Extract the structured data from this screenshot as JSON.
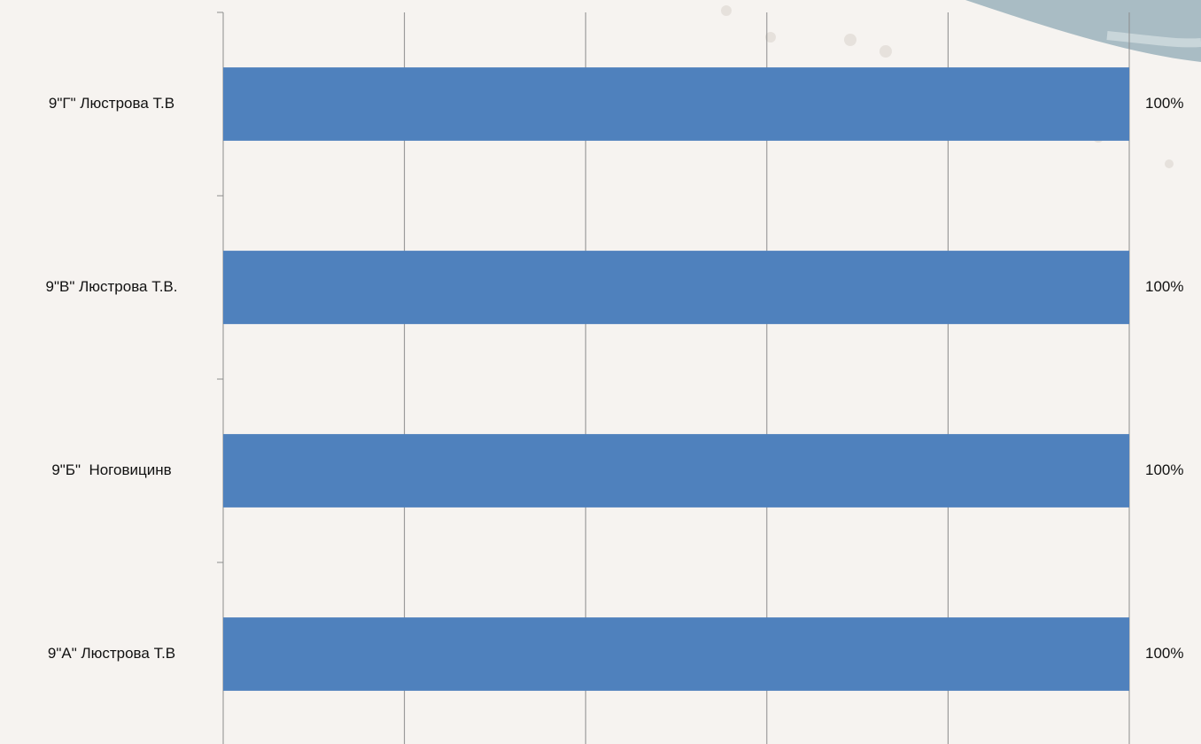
{
  "chart_data": {
    "type": "hbar",
    "categories": [
      "9\"А\" Люстрова Т.В",
      "9\"Б\"  Ноговицинв",
      "9\"В\" Люстрова Т.В.",
      "9\"Г\" Люстрова Т.В"
    ],
    "values": [
      100,
      100,
      100,
      100
    ],
    "value_labels": [
      "100%",
      "100%",
      "100%",
      "100%"
    ],
    "color": "#4f81bd",
    "xlim": [
      0,
      100
    ],
    "xticks": [
      0,
      20,
      40,
      60,
      80,
      100
    ],
    "show_xtick_labels": false,
    "grid": true
  }
}
